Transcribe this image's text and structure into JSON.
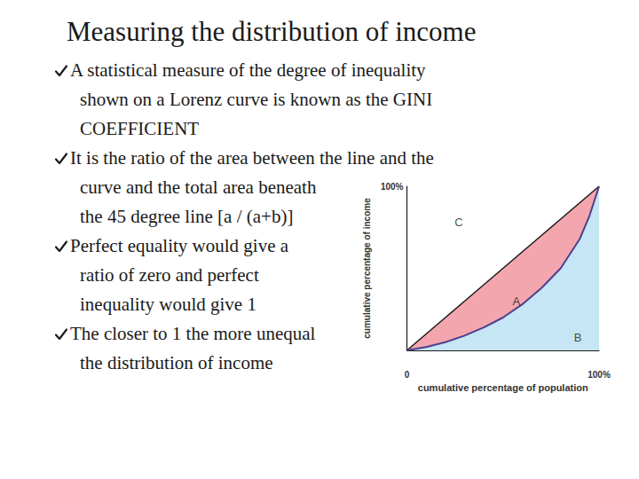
{
  "title": "Measuring the distribution of income",
  "bullets": [
    [
      "A statistical measure of the degree of inequality",
      "shown on a Lorenz curve is known as the GINI",
      "COEFFICIENT"
    ],
    [
      "It is the ratio of the area between the line and the",
      "curve and the total area beneath",
      "the 45 degree line [a / (a+b)]"
    ],
    [
      "Perfect equality would give a",
      "ratio of zero and perfect",
      "inequality would give 1"
    ],
    [
      "The closer to 1 the more unequal",
      "the distribution of income"
    ]
  ],
  "chart_data": {
    "type": "line",
    "x_label": "cumulative percentage of population",
    "y_label": "cumulative percentage of income",
    "x": [
      0,
      10,
      20,
      30,
      40,
      50,
      60,
      70,
      80,
      90,
      95,
      100
    ],
    "series": [
      {
        "color": "#f4a6ae",
        "values": [
          0,
          10,
          20,
          30,
          40,
          50,
          60,
          70,
          80,
          90,
          95,
          100
        ]
      },
      {
        "color": "#c6e5f5",
        "values": [
          0,
          2,
          5,
          9,
          14,
          20,
          28,
          38,
          50,
          68,
          82,
          100
        ]
      }
    ],
    "xlim": [
      0,
      100
    ],
    "ylim": [
      0,
      100
    ],
    "xticks": [
      0,
      {
        "value": 100,
        "label": "100%"
      }
    ],
    "yticks": [
      {
        "value": 100,
        "label": "100%"
      }
    ],
    "grid": false,
    "annotations": [
      {
        "text": "A",
        "x": 57,
        "y": 30
      },
      {
        "text": "B",
        "x": 89,
        "y": 8
      },
      {
        "text": "C",
        "x": 27,
        "y": 78
      }
    ]
  }
}
